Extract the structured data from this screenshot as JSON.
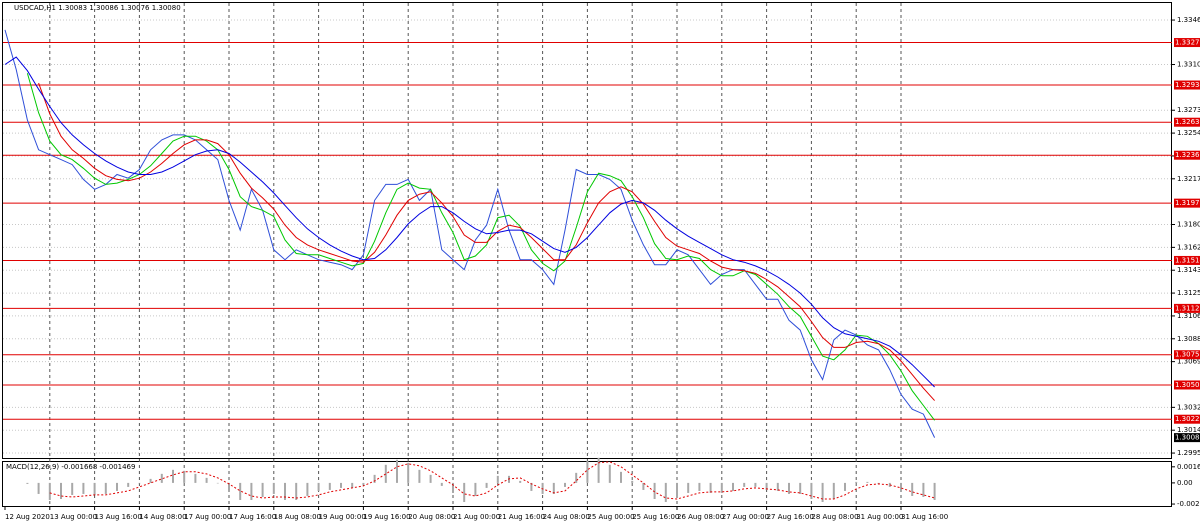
{
  "chart_data": [
    {
      "type": "line",
      "title": "USDCAD,H1  1.30083 1.30086 1.30076 1.30080",
      "grid": true,
      "categories": [
        "12 Aug 2020",
        null,
        null,
        null,
        "13 Aug 00:00",
        null,
        null,
        null,
        "13 Aug 16:00",
        null,
        null,
        null,
        "14 Aug 08:00",
        null,
        null,
        null,
        "17 Aug 00:00",
        null,
        null,
        null,
        "17 Aug 16:00",
        null,
        null,
        null,
        "18 Aug 08:00",
        null,
        null,
        null,
        "19 Aug 00:00",
        null,
        null,
        null,
        "19 Aug 16:00",
        null,
        null,
        null,
        "20 Aug 08:00",
        null,
        null,
        null,
        "21 Aug 00:00",
        null,
        null,
        null,
        "21 Aug 16:00",
        null,
        null,
        null,
        "24 Aug 08:00",
        null,
        null,
        null,
        "25 Aug 00:00",
        null,
        null,
        null,
        "25 Aug 16:00",
        null,
        null,
        null,
        "26 Aug 08:00",
        null,
        null,
        null,
        "27 Aug 00:00",
        null,
        null,
        null,
        "27 Aug 16:00",
        null,
        null,
        null,
        "28 Aug 08:00",
        null,
        null,
        null,
        "31 Aug 00:00",
        null,
        null,
        null,
        "31 Aug 16:00",
        null,
        null,
        null
      ],
      "series": [
        {
          "color": "#2f4fd8",
          "values": [
            1.3338,
            1.3306,
            1.3265,
            1.3241,
            1.3237,
            1.3233,
            1.3229,
            1.3217,
            1.3209,
            1.3213,
            1.3221,
            1.3218,
            1.3225,
            1.3241,
            1.3249,
            1.3253,
            1.3253,
            1.3249,
            1.3241,
            1.3233,
            1.32,
            1.3176,
            1.3209,
            1.3192,
            1.316,
            1.3152,
            1.316,
            1.3156,
            1.3152,
            1.315,
            1.3148,
            1.3144,
            1.3156,
            1.32,
            1.3213,
            1.3213,
            1.3217,
            1.32,
            1.3209,
            1.316,
            1.3152,
            1.3144,
            1.3168,
            1.318,
            1.3209,
            1.3176,
            1.3152,
            1.3152,
            1.3144,
            1.3132,
            1.3176,
            1.3225,
            1.3221,
            1.3221,
            1.3217,
            1.3209,
            1.3184,
            1.3164,
            1.3148,
            1.3148,
            1.316,
            1.3156,
            1.3144,
            1.3132,
            1.314,
            1.3144,
            1.3144,
            1.3132,
            1.312,
            1.312,
            1.3103,
            1.3095,
            1.3071,
            1.3055,
            1.3087,
            1.3095,
            1.3091,
            1.3083,
            1.3079,
            1.3063,
            1.3043,
            1.3031,
            1.3027,
            1.3008
          ]
        },
        {
          "color": "#00c800",
          "values": [
            null,
            null,
            1.3303,
            1.3271,
            1.3248,
            1.3237,
            1.3233,
            1.3226,
            1.3218,
            1.3213,
            1.3214,
            1.3217,
            1.3221,
            1.3228,
            1.3238,
            1.3248,
            1.3252,
            1.3252,
            1.3248,
            1.3241,
            1.3225,
            1.3203,
            1.3195,
            1.3192,
            1.3187,
            1.3168,
            1.3157,
            1.3156,
            1.3156,
            1.3153,
            1.315,
            1.3147,
            1.3149,
            1.3167,
            1.319,
            1.3209,
            1.3214,
            1.321,
            1.3209,
            1.319,
            1.3174,
            1.3152,
            1.3155,
            1.3164,
            1.3186,
            1.3188,
            1.3179,
            1.316,
            1.3149,
            1.3143,
            1.3151,
            1.3178,
            1.3207,
            1.3222,
            1.322,
            1.3216,
            1.3203,
            1.3186,
            1.3165,
            1.3153,
            1.3152,
            1.3155,
            1.3153,
            1.3144,
            1.3139,
            1.3139,
            1.3143,
            1.314,
            1.3132,
            1.3124,
            1.3114,
            1.3106,
            1.309,
            1.3074,
            1.3071,
            1.3079,
            1.3091,
            1.309,
            1.3084,
            1.3075,
            1.3062,
            1.3046,
            1.3034,
            1.3022
          ]
        },
        {
          "color": "#e00000",
          "values": [
            null,
            null,
            null,
            1.3295,
            1.327,
            1.3252,
            1.3241,
            1.3234,
            1.3226,
            1.322,
            1.3217,
            1.3216,
            1.3218,
            1.3223,
            1.323,
            1.3238,
            1.3245,
            1.3249,
            1.3249,
            1.3246,
            1.3237,
            1.3222,
            1.321,
            1.3202,
            1.3193,
            1.318,
            1.317,
            1.3164,
            1.316,
            1.3157,
            1.3154,
            1.3151,
            1.315,
            1.3158,
            1.3172,
            1.3188,
            1.32,
            1.3205,
            1.3207,
            1.3198,
            1.3187,
            1.3172,
            1.3166,
            1.3166,
            1.3175,
            1.318,
            1.3178,
            1.317,
            1.3161,
            1.3152,
            1.3152,
            1.3164,
            1.3182,
            1.3198,
            1.3207,
            1.3211,
            1.3207,
            1.3197,
            1.3183,
            1.317,
            1.3163,
            1.316,
            1.3157,
            1.3151,
            1.3146,
            1.3144,
            1.3143,
            1.3141,
            1.3136,
            1.313,
            1.3122,
            1.3114,
            1.3102,
            1.3089,
            1.3081,
            1.3081,
            1.3085,
            1.3086,
            1.3084,
            1.3079,
            1.307,
            1.3059,
            1.3048,
            1.3038
          ]
        },
        {
          "color": "#0000e0",
          "values": [
            1.331,
            1.3316,
            1.3305,
            1.329,
            1.3276,
            1.3263,
            1.3253,
            1.3245,
            1.3238,
            1.3232,
            1.3227,
            1.3223,
            1.3221,
            1.3221,
            1.3223,
            1.3227,
            1.3232,
            1.3237,
            1.324,
            1.3241,
            1.3238,
            1.3231,
            1.3223,
            1.3215,
            1.3206,
            1.3196,
            1.3186,
            1.3177,
            1.317,
            1.3164,
            1.3159,
            1.3155,
            1.3152,
            1.3153,
            1.316,
            1.317,
            1.3181,
            1.3189,
            1.3195,
            1.3195,
            1.319,
            1.3183,
            1.3177,
            1.3173,
            1.3174,
            1.3176,
            1.3176,
            1.3173,
            1.3167,
            1.3161,
            1.3158,
            1.3162,
            1.317,
            1.318,
            1.319,
            1.3197,
            1.32,
            1.3198,
            1.3192,
            1.3184,
            1.3177,
            1.3171,
            1.3166,
            1.3161,
            1.3156,
            1.3152,
            1.315,
            1.3147,
            1.3143,
            1.3138,
            1.3132,
            1.3125,
            1.3116,
            1.3105,
            1.3097,
            1.3092,
            1.309,
            1.3088,
            1.3086,
            1.3082,
            1.3075,
            1.3067,
            1.3058,
            1.3049
          ]
        }
      ],
      "ylim": [
        1.29915,
        1.33598
      ],
      "yticks": [
        {
          "value": 1.3346,
          "label": "1.33460"
        },
        {
          "value": 1.331,
          "label": "1.33100"
        },
        {
          "value": 1.3273,
          "label": "1.32730"
        },
        1.32545,
        {
          "value": 1.3236,
          "label": "1.32360"
        },
        1.32175,
        1.31805,
        {
          "value": 1.3162,
          "label": "1.31620"
        },
        1.31435,
        {
          "value": 1.3125,
          "label": "1.31250"
        },
        1.31065,
        {
          "value": 1.3088,
          "label": "1.30880"
        },
        1.30695,
        1.30325,
        {
          "value": 1.3014,
          "label": "1.30140"
        },
        1.29955
      ],
      "levels": [
        1.33278,
        1.32934,
        1.32633,
        1.32366,
        1.31978,
        1.31514,
        1.31126,
        1.30751,
        1.30506,
        1.30229
      ],
      "level_color": "#e00000",
      "last_price": {
        "value": 1.3008,
        "label": "1.30080"
      }
    },
    {
      "type": "macd",
      "title": "MACD(12,26,9) -0.001668 -0.001469",
      "histogram": {
        "color": "#a8a8a8",
        "values": [
          null,
          null,
          -0.0001,
          -0.0011,
          -0.0017,
          -0.0016,
          -0.0012,
          -0.0011,
          -0.0012,
          -0.0011,
          -0.0008,
          -0.0004,
          0,
          0.0004,
          0.0009,
          0.0013,
          0.0012,
          0.0009,
          0.0005,
          0,
          -0.0008,
          -0.0017,
          -0.0017,
          -0.0014,
          -0.0011,
          -0.0017,
          -0.0017,
          -0.0013,
          -0.0008,
          -0.0007,
          -0.0005,
          -0.0005,
          -0.0002,
          0.0008,
          0.0018,
          0.0023,
          0.002,
          0.0013,
          0.0008,
          -0.0003,
          -0.001,
          -0.0019,
          -0.0013,
          -0.0005,
          0.0007,
          0.0007,
          0.0002,
          -0.0008,
          -0.0011,
          -0.0011,
          -0.0004,
          0.001,
          0.0022,
          0.0025,
          0.0018,
          0.0011,
          0.0002,
          -0.0007,
          -0.0016,
          -0.0019,
          -0.0015,
          -0.001,
          -0.0008,
          -0.001,
          -0.001,
          -0.0008,
          -0.0004,
          -0.0004,
          -0.0007,
          -0.0008,
          -0.0011,
          -0.0011,
          -0.0016,
          -0.0019,
          -0.0016,
          -0.0008,
          0.0001,
          0.0001,
          -0.0001,
          -0.0004,
          -0.0008,
          -0.0013,
          -0.0014,
          -0.0017
        ]
      },
      "signal": {
        "color": "#e00000",
        "values": [
          null,
          null,
          null,
          null,
          -0.001,
          -0.0013,
          -0.0014,
          -0.0013,
          -0.0012,
          -0.0012,
          -0.001,
          -0.0008,
          -0.0004,
          0,
          0.0004,
          0.0008,
          0.0011,
          0.0011,
          0.0009,
          0.0005,
          -0.0001,
          -0.0008,
          -0.0013,
          -0.0015,
          -0.0014,
          -0.0014,
          -0.0015,
          -0.0014,
          -0.0012,
          -0.0009,
          -0.0007,
          -0.0005,
          -0.0003,
          0.0002,
          0.0009,
          0.0016,
          0.0019,
          0.0017,
          0.0012,
          0.0005,
          -0.0002,
          -0.0011,
          -0.0013,
          -0.001,
          -0.0002,
          0.0004,
          0.0005,
          -0.0001,
          -0.0006,
          -0.001,
          -0.0008,
          0.0002,
          0.0013,
          0.002,
          0.0021,
          0.0016,
          0.0008,
          0,
          -0.0009,
          -0.0015,
          -0.0016,
          -0.0013,
          -0.001,
          -0.0009,
          -0.0009,
          -0.0008,
          -0.0006,
          -0.0005,
          -0.0006,
          -0.0007,
          -0.0009,
          -0.001,
          -0.0013,
          -0.0016,
          -0.0016,
          -0.0012,
          -0.0006,
          -0.0002,
          -0.0001,
          -0.0002,
          -0.0005,
          -0.0009,
          -0.0012,
          -0.0015
        ]
      },
      "ylim": [
        -0.0023,
        0.00208
      ],
      "yticks": [
        0.001601,
        {
          "value": 0,
          "label": "0.00"
        },
        -0.002106
      ]
    }
  ]
}
